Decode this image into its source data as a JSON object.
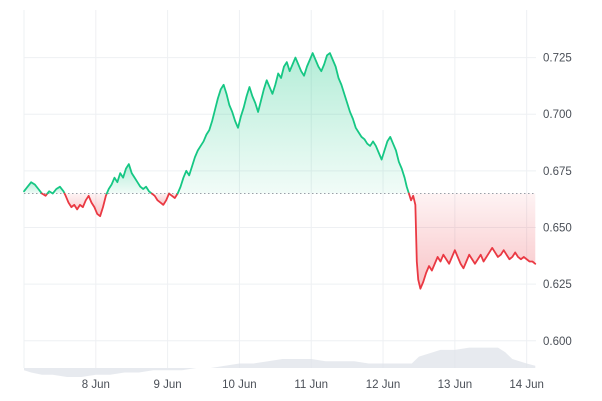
{
  "chart_data": {
    "type": "line",
    "title": "",
    "xlabel": "",
    "ylabel": "",
    "baseline": 0.665,
    "ylim": [
      0.588,
      0.746
    ],
    "xlim": [
      7.0,
      14.13
    ],
    "x_ticks": [
      {
        "x": 8,
        "label": "8 Jun"
      },
      {
        "x": 9,
        "label": "9 Jun"
      },
      {
        "x": 10,
        "label": "10 Jun"
      },
      {
        "x": 11,
        "label": "11 Jun"
      },
      {
        "x": 12,
        "label": "12 Jun"
      },
      {
        "x": 13,
        "label": "13 Jun"
      },
      {
        "x": 14,
        "label": "14 Jun"
      }
    ],
    "y_ticks": [
      {
        "y": 0.725,
        "label": "0.725"
      },
      {
        "y": 0.7,
        "label": "0.700"
      },
      {
        "y": 0.675,
        "label": "0.675"
      },
      {
        "y": 0.65,
        "label": "0.650"
      },
      {
        "y": 0.625,
        "label": "0.625"
      },
      {
        "y": 0.6,
        "label": "0.600"
      }
    ],
    "series": [
      {
        "values": [
          [
            7.0,
            0.666
          ],
          [
            7.05,
            0.668
          ],
          [
            7.1,
            0.67
          ],
          [
            7.15,
            0.669
          ],
          [
            7.2,
            0.667
          ],
          [
            7.25,
            0.665
          ],
          [
            7.3,
            0.664
          ],
          [
            7.35,
            0.666
          ],
          [
            7.4,
            0.665
          ],
          [
            7.45,
            0.667
          ],
          [
            7.5,
            0.668
          ],
          [
            7.55,
            0.666
          ],
          [
            7.58,
            0.664
          ],
          [
            7.62,
            0.661
          ],
          [
            7.66,
            0.659
          ],
          [
            7.7,
            0.66
          ],
          [
            7.74,
            0.658
          ],
          [
            7.78,
            0.66
          ],
          [
            7.82,
            0.659
          ],
          [
            7.86,
            0.662
          ],
          [
            7.9,
            0.664
          ],
          [
            7.94,
            0.661
          ],
          [
            7.98,
            0.659
          ],
          [
            8.02,
            0.656
          ],
          [
            8.06,
            0.655
          ],
          [
            8.1,
            0.659
          ],
          [
            8.14,
            0.664
          ],
          [
            8.18,
            0.667
          ],
          [
            8.22,
            0.669
          ],
          [
            8.26,
            0.672
          ],
          [
            8.3,
            0.67
          ],
          [
            8.34,
            0.674
          ],
          [
            8.38,
            0.672
          ],
          [
            8.42,
            0.676
          ],
          [
            8.46,
            0.678
          ],
          [
            8.5,
            0.674
          ],
          [
            8.54,
            0.672
          ],
          [
            8.58,
            0.67
          ],
          [
            8.62,
            0.668
          ],
          [
            8.66,
            0.667
          ],
          [
            8.7,
            0.668
          ],
          [
            8.74,
            0.666
          ],
          [
            8.78,
            0.665
          ],
          [
            8.82,
            0.664
          ],
          [
            8.86,
            0.662
          ],
          [
            8.9,
            0.661
          ],
          [
            8.94,
            0.66
          ],
          [
            8.98,
            0.662
          ],
          [
            9.02,
            0.665
          ],
          [
            9.06,
            0.664
          ],
          [
            9.1,
            0.663
          ],
          [
            9.14,
            0.665
          ],
          [
            9.18,
            0.668
          ],
          [
            9.22,
            0.672
          ],
          [
            9.26,
            0.675
          ],
          [
            9.3,
            0.673
          ],
          [
            9.34,
            0.677
          ],
          [
            9.38,
            0.681
          ],
          [
            9.42,
            0.684
          ],
          [
            9.46,
            0.686
          ],
          [
            9.5,
            0.688
          ],
          [
            9.54,
            0.691
          ],
          [
            9.58,
            0.693
          ],
          [
            9.62,
            0.697
          ],
          [
            9.66,
            0.702
          ],
          [
            9.7,
            0.707
          ],
          [
            9.74,
            0.711
          ],
          [
            9.78,
            0.713
          ],
          [
            9.82,
            0.709
          ],
          [
            9.86,
            0.704
          ],
          [
            9.9,
            0.701
          ],
          [
            9.94,
            0.697
          ],
          [
            9.98,
            0.694
          ],
          [
            10.02,
            0.699
          ],
          [
            10.06,
            0.703
          ],
          [
            10.1,
            0.708
          ],
          [
            10.14,
            0.712
          ],
          [
            10.18,
            0.708
          ],
          [
            10.22,
            0.705
          ],
          [
            10.26,
            0.701
          ],
          [
            10.3,
            0.706
          ],
          [
            10.34,
            0.711
          ],
          [
            10.38,
            0.715
          ],
          [
            10.42,
            0.712
          ],
          [
            10.46,
            0.709
          ],
          [
            10.5,
            0.713
          ],
          [
            10.54,
            0.718
          ],
          [
            10.58,
            0.716
          ],
          [
            10.62,
            0.721
          ],
          [
            10.66,
            0.723
          ],
          [
            10.7,
            0.719
          ],
          [
            10.74,
            0.722
          ],
          [
            10.78,
            0.725
          ],
          [
            10.82,
            0.722
          ],
          [
            10.86,
            0.719
          ],
          [
            10.9,
            0.717
          ],
          [
            10.94,
            0.721
          ],
          [
            10.98,
            0.724
          ],
          [
            11.02,
            0.727
          ],
          [
            11.06,
            0.724
          ],
          [
            11.1,
            0.721
          ],
          [
            11.14,
            0.719
          ],
          [
            11.18,
            0.722
          ],
          [
            11.22,
            0.726
          ],
          [
            11.26,
            0.727
          ],
          [
            11.3,
            0.724
          ],
          [
            11.34,
            0.721
          ],
          [
            11.38,
            0.716
          ],
          [
            11.42,
            0.713
          ],
          [
            11.46,
            0.709
          ],
          [
            11.5,
            0.705
          ],
          [
            11.54,
            0.701
          ],
          [
            11.58,
            0.698
          ],
          [
            11.62,
            0.694
          ],
          [
            11.66,
            0.692
          ],
          [
            11.7,
            0.69
          ],
          [
            11.74,
            0.689
          ],
          [
            11.78,
            0.687
          ],
          [
            11.82,
            0.686
          ],
          [
            11.86,
            0.688
          ],
          [
            11.9,
            0.686
          ],
          [
            11.94,
            0.683
          ],
          [
            11.98,
            0.68
          ],
          [
            12.02,
            0.684
          ],
          [
            12.06,
            0.688
          ],
          [
            12.1,
            0.69
          ],
          [
            12.14,
            0.687
          ],
          [
            12.18,
            0.684
          ],
          [
            12.22,
            0.679
          ],
          [
            12.26,
            0.676
          ],
          [
            12.3,
            0.672
          ],
          [
            12.33,
            0.668
          ],
          [
            12.36,
            0.665
          ],
          [
            12.39,
            0.662
          ],
          [
            12.42,
            0.664
          ],
          [
            12.45,
            0.66
          ],
          [
            12.47,
            0.635
          ],
          [
            12.49,
            0.627
          ],
          [
            12.52,
            0.623
          ],
          [
            12.56,
            0.626
          ],
          [
            12.6,
            0.63
          ],
          [
            12.64,
            0.633
          ],
          [
            12.68,
            0.631
          ],
          [
            12.72,
            0.634
          ],
          [
            12.76,
            0.637
          ],
          [
            12.8,
            0.635
          ],
          [
            12.84,
            0.638
          ],
          [
            12.88,
            0.636
          ],
          [
            12.92,
            0.634
          ],
          [
            12.96,
            0.637
          ],
          [
            13.0,
            0.64
          ],
          [
            13.04,
            0.637
          ],
          [
            13.08,
            0.634
          ],
          [
            13.12,
            0.632
          ],
          [
            13.16,
            0.635
          ],
          [
            13.2,
            0.638
          ],
          [
            13.24,
            0.636
          ],
          [
            13.28,
            0.634
          ],
          [
            13.32,
            0.636
          ],
          [
            13.36,
            0.638
          ],
          [
            13.4,
            0.635
          ],
          [
            13.44,
            0.637
          ],
          [
            13.48,
            0.639
          ],
          [
            13.52,
            0.641
          ],
          [
            13.56,
            0.639
          ],
          [
            13.6,
            0.637
          ],
          [
            13.64,
            0.638
          ],
          [
            13.68,
            0.64
          ],
          [
            13.72,
            0.638
          ],
          [
            13.76,
            0.636
          ],
          [
            13.8,
            0.637
          ],
          [
            13.84,
            0.639
          ],
          [
            13.88,
            0.637
          ],
          [
            13.92,
            0.636
          ],
          [
            13.96,
            0.637
          ],
          [
            14.0,
            0.636
          ],
          [
            14.04,
            0.635
          ],
          [
            14.08,
            0.635
          ],
          [
            14.12,
            0.634
          ]
        ]
      }
    ],
    "volume": [
      [
        7.0,
        0.587
      ],
      [
        7.1,
        0.586
      ],
      [
        7.25,
        0.585
      ],
      [
        7.4,
        0.585
      ],
      [
        7.6,
        0.584
      ],
      [
        7.8,
        0.584
      ],
      [
        8.0,
        0.585
      ],
      [
        8.2,
        0.585
      ],
      [
        8.4,
        0.586
      ],
      [
        8.6,
        0.586
      ],
      [
        8.8,
        0.587
      ],
      [
        9.0,
        0.587
      ],
      [
        9.2,
        0.587
      ],
      [
        9.4,
        0.588
      ],
      [
        9.6,
        0.588
      ],
      [
        9.8,
        0.589
      ],
      [
        10.0,
        0.59
      ],
      [
        10.2,
        0.59
      ],
      [
        10.4,
        0.591
      ],
      [
        10.6,
        0.592
      ],
      [
        10.8,
        0.592
      ],
      [
        11.0,
        0.592
      ],
      [
        11.2,
        0.591
      ],
      [
        11.4,
        0.591
      ],
      [
        11.6,
        0.591
      ],
      [
        11.8,
        0.59
      ],
      [
        12.0,
        0.59
      ],
      [
        12.2,
        0.59
      ],
      [
        12.4,
        0.59
      ],
      [
        12.5,
        0.593
      ],
      [
        12.6,
        0.594
      ],
      [
        12.8,
        0.596
      ],
      [
        13.0,
        0.596
      ],
      [
        13.2,
        0.597
      ],
      [
        13.4,
        0.597
      ],
      [
        13.6,
        0.597
      ],
      [
        13.7,
        0.595
      ],
      [
        13.8,
        0.592
      ],
      [
        14.0,
        0.59
      ],
      [
        14.12,
        0.589
      ]
    ],
    "grid": true,
    "colors": {
      "up": "#16c784",
      "down": "#ea3943",
      "up_fill": "#16c784",
      "down_fill": "#ea3943",
      "volume": "#dfe3ea",
      "grid": "#eef0f3",
      "baseline": "#9aa0a8",
      "text": "#4a4f57"
    }
  }
}
